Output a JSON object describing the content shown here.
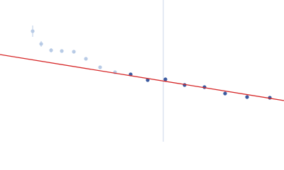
{
  "chart_data": {
    "type": "scatter",
    "xlim": [
      0,
      400
    ],
    "ylim": [
      0,
      200
    ],
    "series": [
      {
        "color": "#b8cbe6",
        "x": [
          46,
          58,
          72,
          87,
          104,
          121,
          141,
          162
        ],
        "values": [
          156,
          138,
          129,
          128,
          127,
          117,
          105,
          98
        ],
        "errors": [
          8,
          4,
          3,
          2,
          2,
          2,
          2,
          1
        ]
      },
      {
        "color": "#3a5aa0",
        "x": [
          184,
          208,
          233,
          260,
          288,
          317,
          348,
          380
        ],
        "values": [
          95,
          87,
          88,
          80,
          77,
          68,
          63,
          62
        ]
      }
    ],
    "fit": {
      "color": "#d62728",
      "x": [
        0,
        400
      ],
      "values": [
        123,
        58
      ]
    },
    "vline": {
      "color": "#c8d4ea",
      "value": 230
    }
  }
}
